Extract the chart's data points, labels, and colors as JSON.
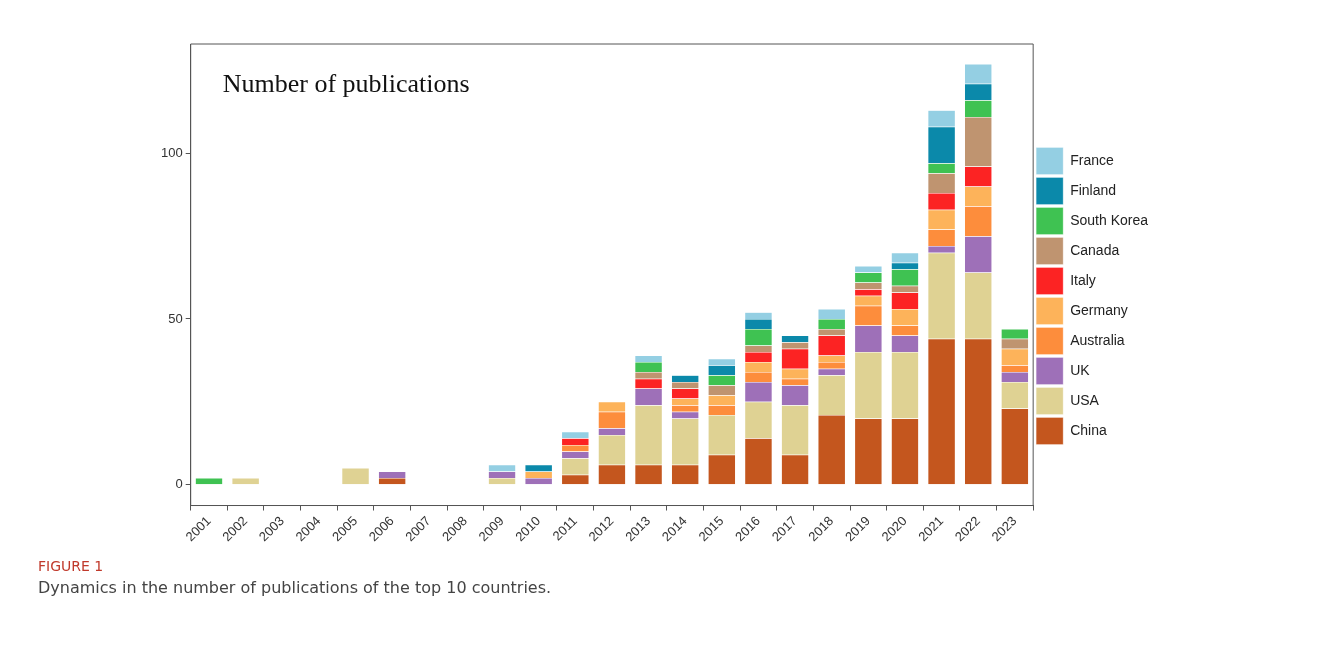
{
  "chart_data": {
    "type": "bar",
    "title": "Number of publications",
    "categories": [
      "2001",
      "2002",
      "2003",
      "2004",
      "2005",
      "2006",
      "2007",
      "2008",
      "2009",
      "2010",
      "2011",
      "2012",
      "2013",
      "2014",
      "2015",
      "2016",
      "2017",
      "2018",
      "2019",
      "2020",
      "2021",
      "2022",
      "2023"
    ],
    "stacked": true,
    "series": [
      {
        "name": "China",
        "color": "#c4561e",
        "values": [
          0,
          0,
          0,
          0,
          0,
          2,
          0,
          0,
          0,
          0,
          3,
          6,
          6,
          6,
          9,
          14,
          9,
          21,
          20,
          20,
          44,
          44,
          23
        ]
      },
      {
        "name": "USA",
        "color": "#dfd293",
        "values": [
          0,
          2,
          0,
          0,
          5,
          0,
          0,
          0,
          2,
          0,
          5,
          9,
          18,
          14,
          12,
          11,
          15,
          12,
          20,
          20,
          26,
          20,
          8
        ]
      },
      {
        "name": "UK",
        "color": "#9e70b8",
        "values": [
          0,
          0,
          0,
          0,
          0,
          2,
          0,
          0,
          2,
          2,
          2,
          2,
          5,
          2,
          0,
          6,
          6,
          2,
          8,
          5,
          2,
          11,
          3
        ]
      },
      {
        "name": "Australia",
        "color": "#fd8d3c",
        "values": [
          0,
          0,
          0,
          0,
          0,
          0,
          0,
          0,
          0,
          0,
          2,
          5,
          0,
          2,
          3,
          3,
          2,
          2,
          6,
          3,
          5,
          9,
          2
        ]
      },
      {
        "name": "Germany",
        "color": "#fdb35a",
        "values": [
          0,
          0,
          0,
          0,
          0,
          0,
          0,
          0,
          0,
          2,
          0,
          3,
          0,
          2,
          3,
          3,
          3,
          2,
          3,
          5,
          6,
          6,
          5
        ]
      },
      {
        "name": "Italy",
        "color": "#fc2323",
        "values": [
          0,
          0,
          0,
          0,
          0,
          0,
          0,
          0,
          0,
          0,
          2,
          0,
          3,
          3,
          0,
          3,
          6,
          6,
          2,
          5,
          5,
          6,
          0
        ]
      },
      {
        "name": "Canada",
        "color": "#bf9470",
        "values": [
          0,
          0,
          0,
          0,
          0,
          0,
          0,
          0,
          0,
          0,
          0,
          0,
          2,
          2,
          3,
          2,
          2,
          2,
          2,
          2,
          6,
          15,
          3
        ]
      },
      {
        "name": "South Korea",
        "color": "#3fc252",
        "values": [
          2,
          0,
          0,
          0,
          0,
          0,
          0,
          0,
          0,
          0,
          0,
          0,
          3,
          0,
          3,
          5,
          0,
          3,
          3,
          5,
          3,
          5,
          3
        ]
      },
      {
        "name": "Finland",
        "color": "#0b89aa",
        "values": [
          0,
          0,
          0,
          0,
          0,
          0,
          0,
          0,
          0,
          2,
          0,
          0,
          0,
          2,
          3,
          3,
          2,
          0,
          0,
          2,
          11,
          5,
          0
        ]
      },
      {
        "name": "France",
        "color": "#94cfe3",
        "values": [
          0,
          0,
          0,
          0,
          0,
          0,
          0,
          0,
          2,
          0,
          2,
          0,
          2,
          0,
          2,
          2,
          0,
          3,
          2,
          3,
          5,
          6,
          0
        ]
      }
    ],
    "ylim": [
      -6.3,
      133
    ],
    "yticks": [
      0,
      50,
      100
    ],
    "grid": false,
    "legend": "right",
    "annotations": [
      "FIGURE 1",
      "Dynamics in the number of publications of the top 10 countries."
    ]
  }
}
